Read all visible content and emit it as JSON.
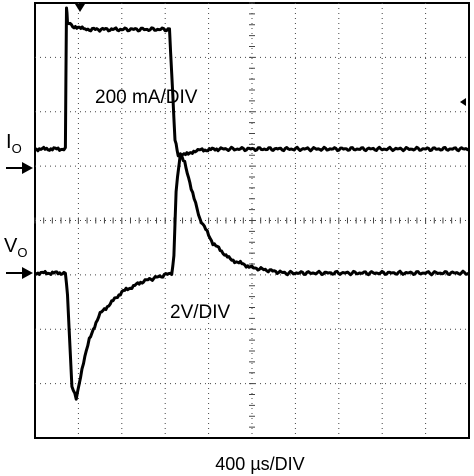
{
  "chart_data": {
    "type": "line",
    "title": "",
    "xlabel": "400 µs/DIV",
    "x_unit": "µs",
    "xlim": [
      0,
      4000
    ],
    "grid": true,
    "grid_style": "dotted",
    "series": [
      {
        "label": "I",
        "label_sub": "O",
        "scale": "200 mA/DIV",
        "x": [
          0,
          280,
          290,
          300,
          360,
          460,
          800,
          1240,
          1270,
          1290,
          1320,
          1360,
          1400,
          1500,
          1700,
          4000
        ],
        "y": [
          0,
          0,
          520,
          470,
          450,
          440,
          440,
          440,
          200,
          30,
          -20,
          -25,
          -15,
          -5,
          0,
          0
        ]
      },
      {
        "label": "V",
        "label_sub": "O",
        "scale": "2V/DIV",
        "x": [
          0,
          280,
          300,
          340,
          380,
          420,
          500,
          600,
          800,
          1000,
          1260,
          1280,
          1300,
          1340,
          1380,
          1440,
          1520,
          1640,
          1800,
          2000,
          2300,
          4000
        ],
        "y": [
          0,
          0,
          -0.8,
          -4.2,
          -4.6,
          -3.8,
          -2.4,
          -1.5,
          -0.7,
          -0.3,
          0,
          0.6,
          3.0,
          4.4,
          4.1,
          3.1,
          2.0,
          1.1,
          0.5,
          0.2,
          0,
          0
        ]
      }
    ]
  }
}
